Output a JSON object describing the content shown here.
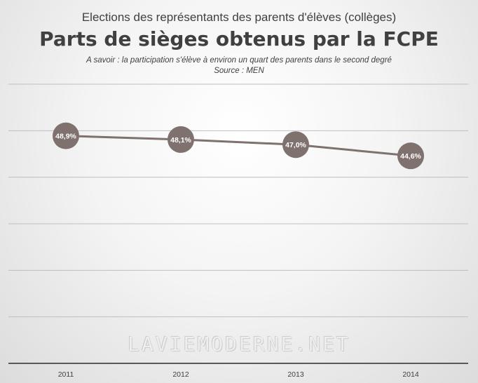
{
  "header": {
    "supertitle": "Elections des représentants des parents d'élèves (collèges)",
    "title": "Parts de sièges obtenus par la FCPE",
    "subtitle": "A savoir : la participation s'élève à environ un quart des parents dans le second degré",
    "source": "Source : MEN"
  },
  "watermark": "LAVIEMODERNE.NET",
  "colors": {
    "line": "#7f716e",
    "marker": "#7f716e",
    "label_text": "#ffffff",
    "gridline": "#bfbfbf",
    "axis": "#595959"
  },
  "chart_data": {
    "type": "line",
    "title": "Parts de sièges obtenus par la FCPE",
    "categories": [
      "2011",
      "2012",
      "2013",
      "2014"
    ],
    "series": [
      {
        "values": [
          48.9,
          48.1,
          47.0,
          44.6
        ],
        "labels": [
          "48,9%",
          "48,1%",
          "47,0%",
          "44,6%"
        ]
      }
    ],
    "ylim": [
      0,
      60
    ],
    "grid": true,
    "legend": "none"
  }
}
